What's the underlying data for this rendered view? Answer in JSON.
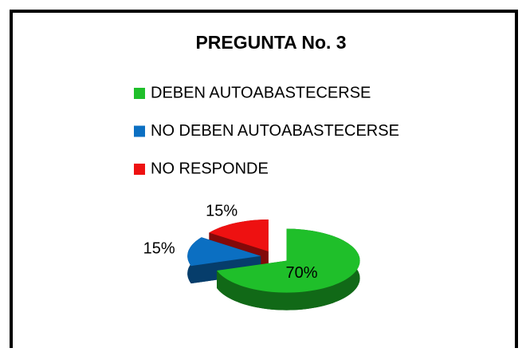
{
  "chart_data": {
    "type": "pie",
    "title": "PREGUNTA No. 3",
    "categories": [
      "DEBEN AUTOABASTECERSE",
      "NO DEBEN AUTOABASTECERSE",
      "NO RESPONDE"
    ],
    "values": [
      70,
      15,
      15
    ],
    "value_labels": [
      "70%",
      "15%",
      "15%"
    ],
    "colors": [
      "#1fbf2a",
      "#0b6fc2",
      "#ee1111"
    ],
    "legend": "top"
  }
}
